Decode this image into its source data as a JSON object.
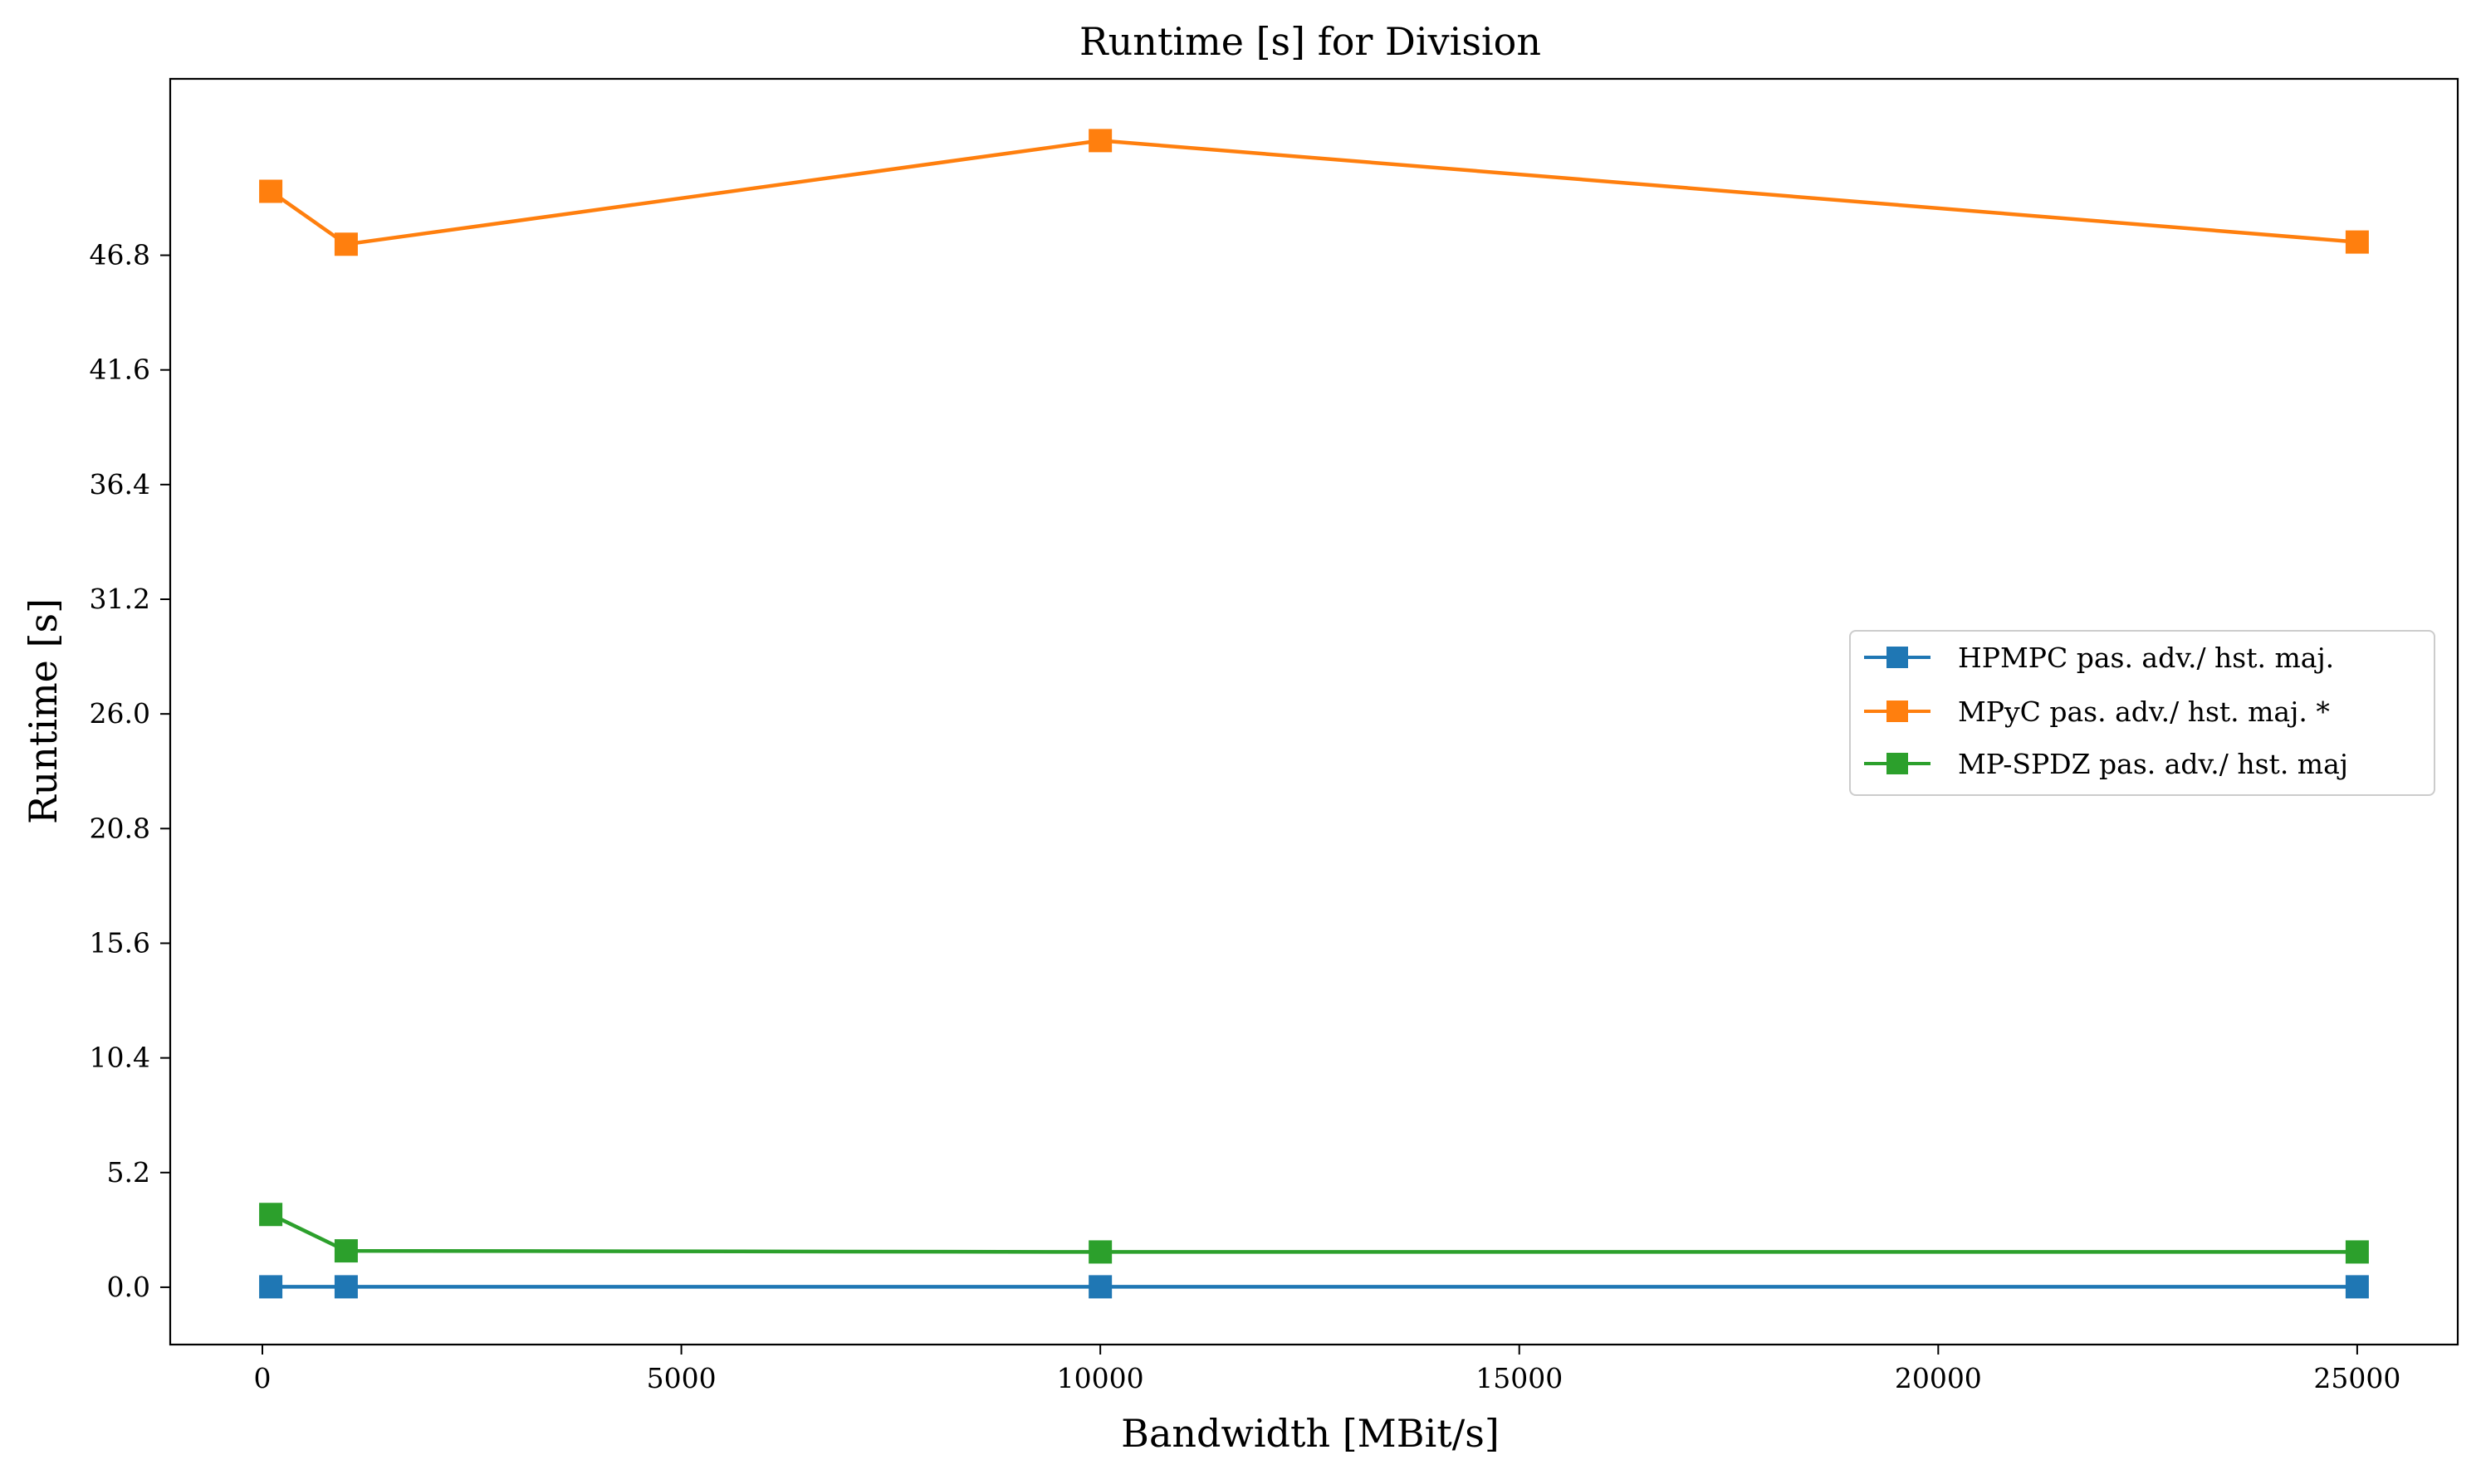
{
  "chart_data": {
    "type": "line",
    "title": "Runtime [s] for Division",
    "xlabel": "Bandwidth [MBit/s]",
    "ylabel": "Runtime [s]",
    "xlim": [
      -1100,
      26200
    ],
    "ylim": [
      -2.6,
      54.8
    ],
    "x_ticks": [
      0,
      5000,
      10000,
      15000,
      20000,
      25000
    ],
    "x_tick_labels": [
      "0",
      "5000",
      "10000",
      "15000",
      "20000",
      "25000"
    ],
    "y_ticks": [
      0.0,
      5.2,
      10.4,
      15.6,
      20.8,
      26.0,
      31.2,
      36.4,
      41.6,
      46.8
    ],
    "y_tick_labels": [
      "0.0",
      "5.2",
      "10.4",
      "15.6",
      "20.8",
      "26.0",
      "31.2",
      "36.4",
      "41.6",
      "46.8"
    ],
    "grid": false,
    "legend_position": "center-right",
    "marker": "square",
    "x": [
      100,
      1000,
      10000,
      25000
    ],
    "series": [
      {
        "name": "HPMPC pas. adv./ hst. maj.",
        "color": "#1f77b4",
        "values": [
          0.02,
          0.02,
          0.02,
          0.02
        ]
      },
      {
        "name": "MPyC pas. adv./ hst. maj. *",
        "color": "#ff7f0e",
        "values": [
          49.7,
          47.3,
          52.0,
          47.4
        ]
      },
      {
        "name": "MP-SPDZ pas. adv./ hst. maj",
        "color": "#2ca02c",
        "values": [
          3.3,
          1.65,
          1.6,
          1.6
        ]
      }
    ]
  }
}
